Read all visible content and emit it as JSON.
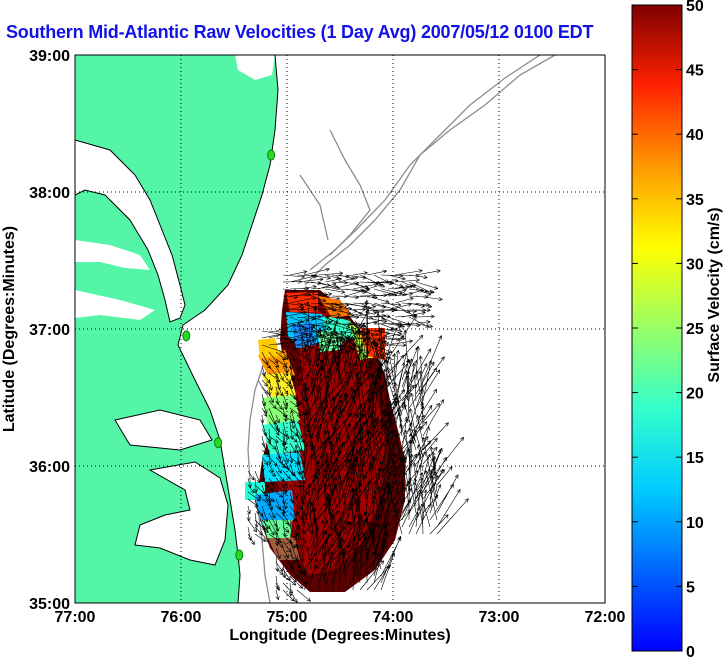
{
  "title": "Southern Mid-Atlantic Raw Velocities (1 Day Avg) 2007/05/12 0100 EDT",
  "map": {
    "xlabel": "Longitude (Degrees:Minutes)",
    "ylabel": "Latitude (Degrees:Minutes)",
    "xticks": [
      "77:00",
      "76:00",
      "75:00",
      "74:00",
      "73:00",
      "72:00"
    ],
    "yticks": [
      "39:00",
      "38:00",
      "37:00",
      "36:00",
      "35:00"
    ],
    "xlim": [
      -77,
      -72
    ],
    "ylim": [
      35,
      39
    ],
    "grid": "dotted",
    "land_color": "#55f5a8",
    "vector_color": "#000000",
    "stations": [
      {
        "lon": -75.15,
        "lat": 38.27
      },
      {
        "lon": -75.95,
        "lat": 36.95
      },
      {
        "lon": -75.65,
        "lat": 36.17
      },
      {
        "lon": -75.45,
        "lat": 35.35
      }
    ]
  },
  "colorbar": {
    "label": "Surface Velocity (cm/s)",
    "ticks": [
      "0",
      "5",
      "10",
      "15",
      "20",
      "25",
      "30",
      "35",
      "40",
      "45",
      "50"
    ],
    "min": 0,
    "max": 50,
    "colormap": "jet"
  }
}
